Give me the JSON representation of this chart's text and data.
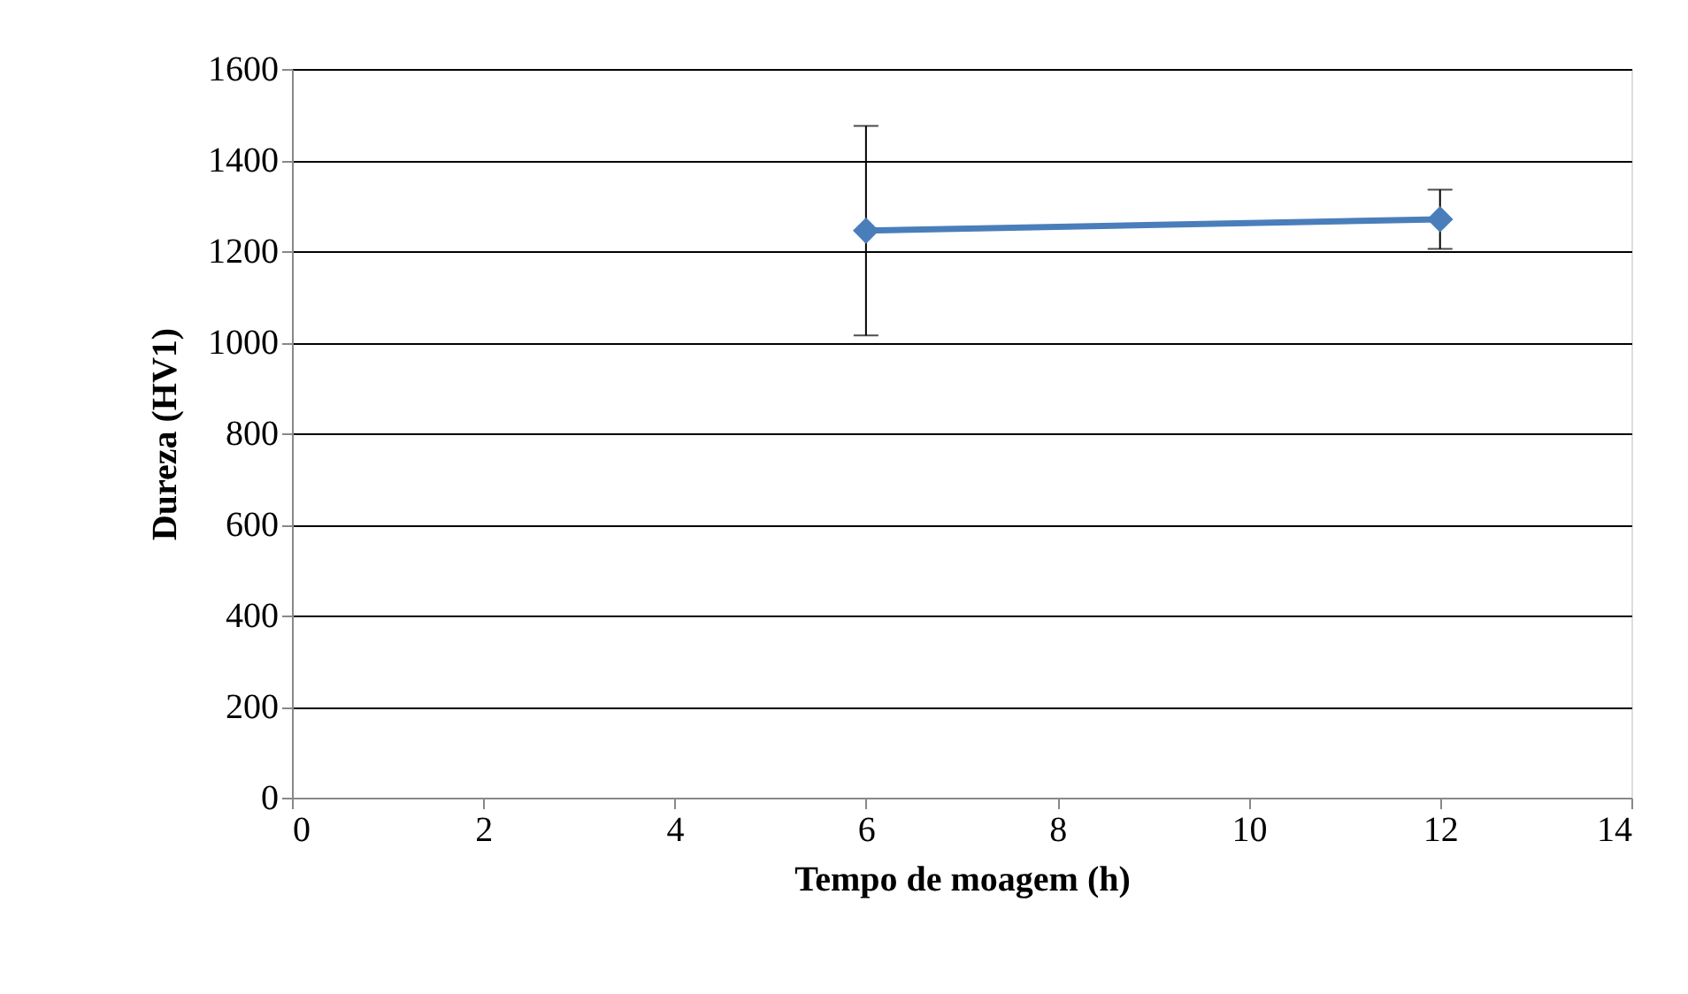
{
  "chart_data": {
    "type": "line",
    "xlabel": "Tempo de moagem (h)",
    "ylabel": "Dureza (HV1)",
    "x": [
      6,
      12
    ],
    "series": [
      {
        "color": "#4a7ebb",
        "values": [
          1245,
          1270
        ],
        "errors": [
          230,
          65
        ]
      }
    ],
    "xlim": [
      0,
      14
    ],
    "xticks": [
      0,
      2,
      4,
      6,
      8,
      10,
      12,
      14
    ],
    "ylim": [
      0,
      1600
    ],
    "yticks": [
      0,
      200,
      400,
      600,
      800,
      1000,
      1200,
      1400,
      1600
    ],
    "grid": "y",
    "marker": "diamond",
    "line_style": "solid"
  }
}
